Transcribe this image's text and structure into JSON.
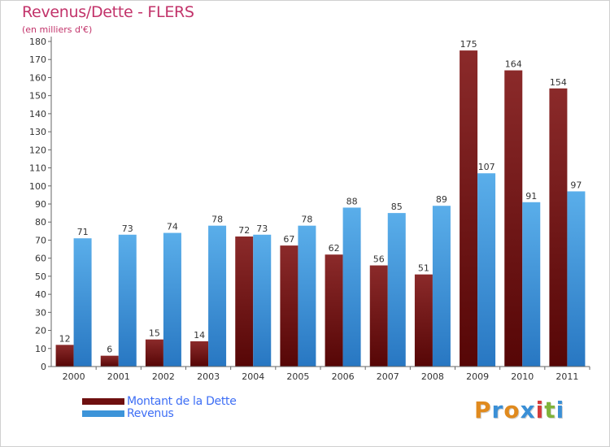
{
  "header": {
    "title": "Revenus/Dette - FLERS",
    "subtitle": "(en milliers d'€)"
  },
  "chart_data": {
    "type": "bar",
    "title": "Revenus/Dette - FLERS",
    "ylabel": "(en milliers d'€)",
    "xlabel": "",
    "categories": [
      "2000",
      "2001",
      "2002",
      "2003",
      "2004",
      "2005",
      "2006",
      "2007",
      "2008",
      "2009",
      "2010",
      "2011"
    ],
    "series": [
      {
        "name": "Montant de la Dette",
        "color": "#7a1a1a",
        "values": [
          12,
          6,
          15,
          14,
          72,
          67,
          62,
          56,
          51,
          175,
          164,
          154
        ]
      },
      {
        "name": "Revenus",
        "color": "#3d94d9",
        "values": [
          71,
          73,
          74,
          78,
          73,
          78,
          88,
          85,
          89,
          107,
          91,
          97
        ]
      }
    ],
    "ylim": [
      0,
      180
    ],
    "ytick_step": 10,
    "grid": false,
    "legend_position": "bottom-left"
  },
  "legend": {
    "items": [
      {
        "label": "Montant de la Dette",
        "color": "#6e0f0f"
      },
      {
        "label": "Revenus",
        "color": "#3d94d9"
      }
    ]
  },
  "logo": {
    "letters": [
      "P",
      "r",
      "o",
      "x",
      "i",
      "t",
      "i"
    ],
    "colors": [
      "#e08a1e",
      "#3a8fd6",
      "#e08a1e",
      "#3a8fd6",
      "#d43a3a",
      "#7fb33a",
      "#3a8fd6"
    ]
  }
}
